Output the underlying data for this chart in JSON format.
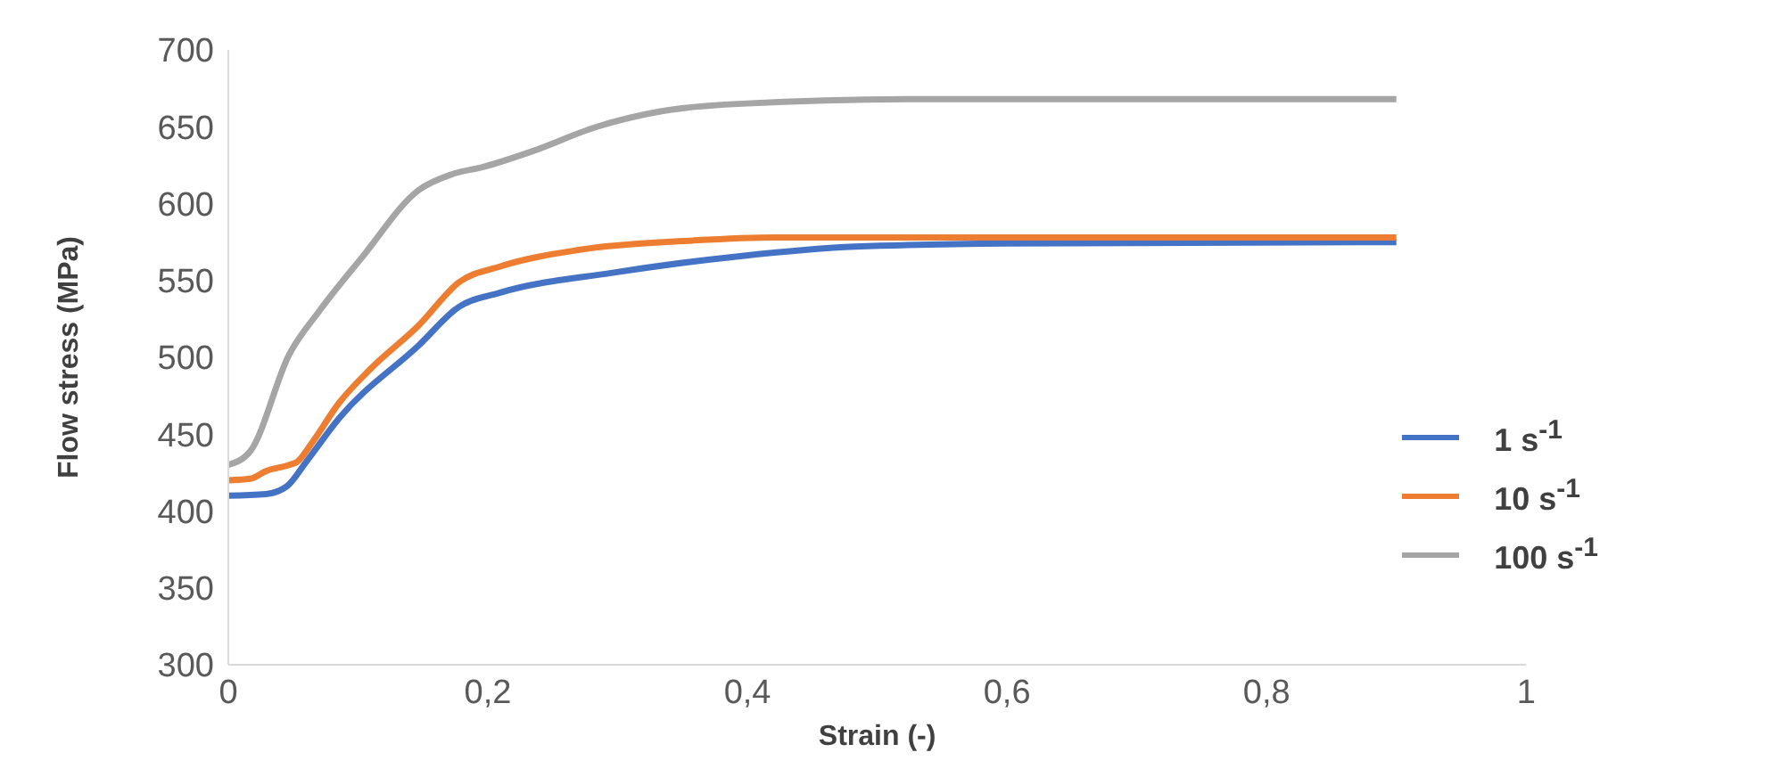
{
  "chart_data": {
    "type": "line",
    "xlabel": "Strain (-)",
    "ylabel": "Flow stress (MPa)",
    "xlim": [
      0,
      1
    ],
    "xticks": [
      0,
      {
        "value": 0.2,
        "label": "0,2"
      },
      {
        "value": 0.4,
        "label": "0,4"
      },
      {
        "value": 0.6,
        "label": "0,6"
      },
      {
        "value": 0.8,
        "label": "0,8"
      },
      1
    ],
    "ylim": [
      300,
      700
    ],
    "yticks": [
      300,
      350,
      400,
      450,
      500,
      550,
      600,
      650,
      700
    ],
    "grid": false,
    "legend": "right",
    "marker": "none",
    "line_style": "solid",
    "series": [
      {
        "name": "1 s$^{-1}$",
        "color": "#4472c4",
        "x": [
          0,
          0.029,
          0.045,
          0.06,
          0.085,
          0.147,
          0.178,
          0.209,
          0.296,
          0.396,
          0.483,
          0.6,
          0.9
        ],
        "values": [
          410,
          411,
          416,
          432,
          460,
          508,
          533,
          542,
          555,
          566,
          572,
          574,
          575
        ]
      },
      {
        "name": "10 s$^{-1}$",
        "color": "#ed7d31",
        "x": [
          0,
          0.017,
          0.029,
          0.047,
          0.053,
          0.065,
          0.085,
          0.109,
          0.147,
          0.178,
          0.209,
          0.271,
          0.358,
          0.421,
          0.9
        ],
        "values": [
          420,
          421,
          426,
          430,
          432,
          445,
          470,
          492,
          521,
          549,
          559,
          570,
          576,
          578,
          578
        ]
      },
      {
        "name": "100 s$^{-1}$",
        "color": "#a5a5a5",
        "x": [
          0,
          0.017,
          0.047,
          0.07,
          0.103,
          0.147,
          0.172,
          0.197,
          0.234,
          0.284,
          0.333,
          0.396,
          0.545,
          0.9
        ],
        "values": [
          430,
          439,
          502,
          530,
          565,
          609,
          619,
          624,
          634,
          650,
          660,
          665,
          668,
          668
        ]
      }
    ]
  }
}
